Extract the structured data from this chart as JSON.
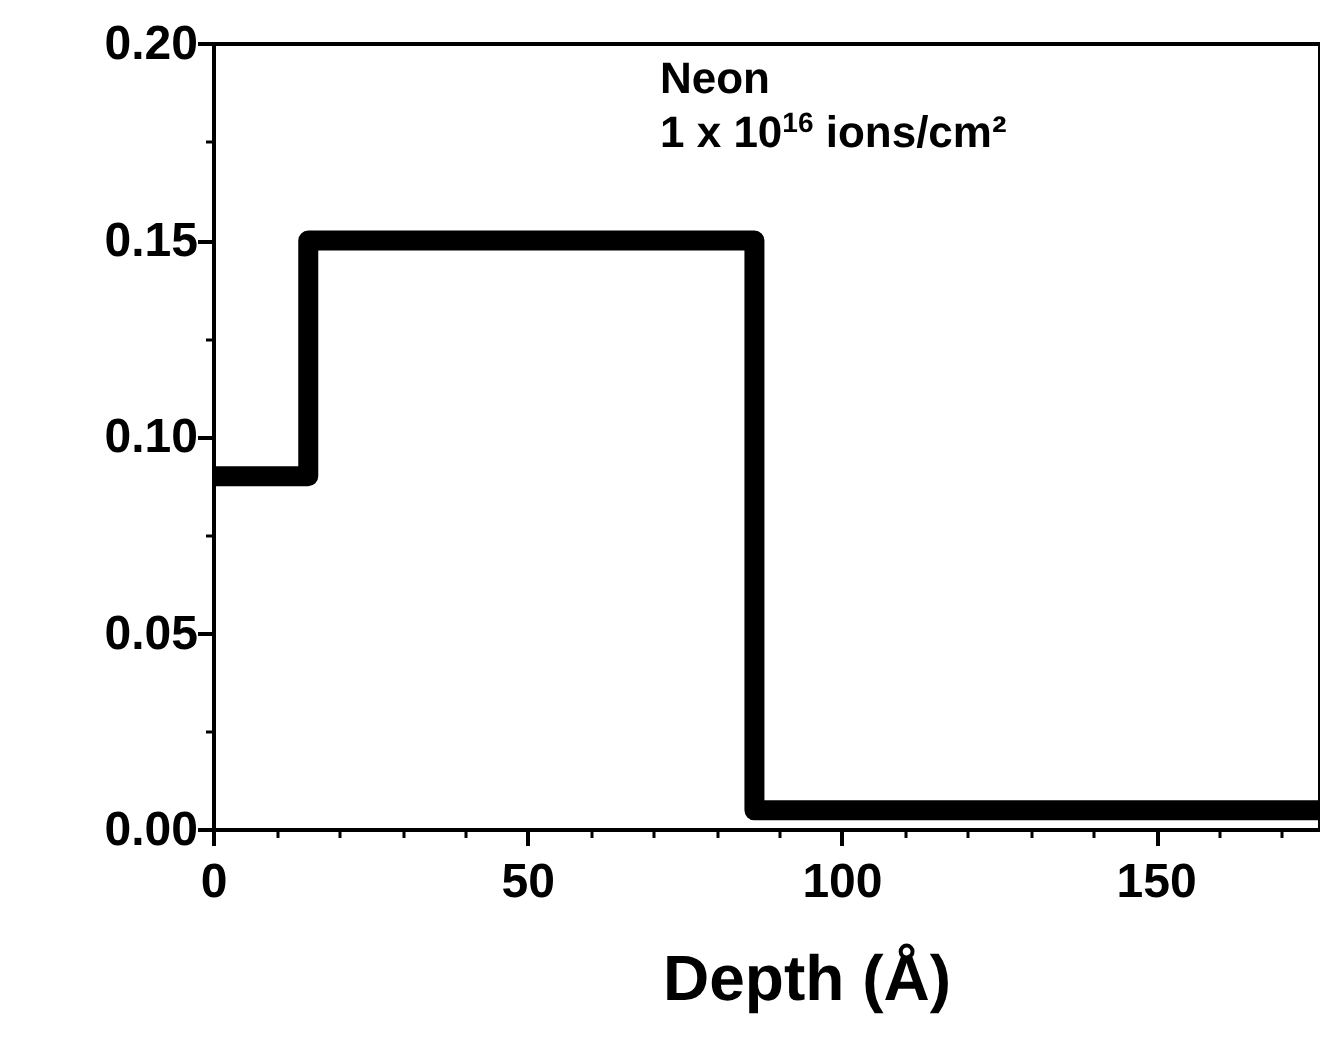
{
  "chart_data": {
    "type": "step",
    "xlabel": "Depth (Å)",
    "annotations": [
      "Neon",
      "1 x 10$^{16}$ ions/cm²"
    ],
    "x": [
      0,
      15,
      86,
      176
    ],
    "series": [
      {
        "color": "#000000",
        "values": [
          0.09,
          0.15,
          0.005,
          0.005
        ]
      }
    ],
    "xlim": [
      0,
      176
    ],
    "xticks": [
      0,
      50,
      100,
      150
    ],
    "ylim": [
      0,
      0.2
    ],
    "yticks": [
      {
        "value": 0,
        "label": "0.00"
      },
      {
        "value": 0.05,
        "label": "0.05"
      },
      {
        "value": 0.1,
        "label": "0.10"
      },
      {
        "value": 0.15,
        "label": "0.15"
      },
      {
        "value": 0.2,
        "label": "0.20"
      }
    ],
    "grid": false,
    "marker": "none",
    "line_style": "solid"
  }
}
